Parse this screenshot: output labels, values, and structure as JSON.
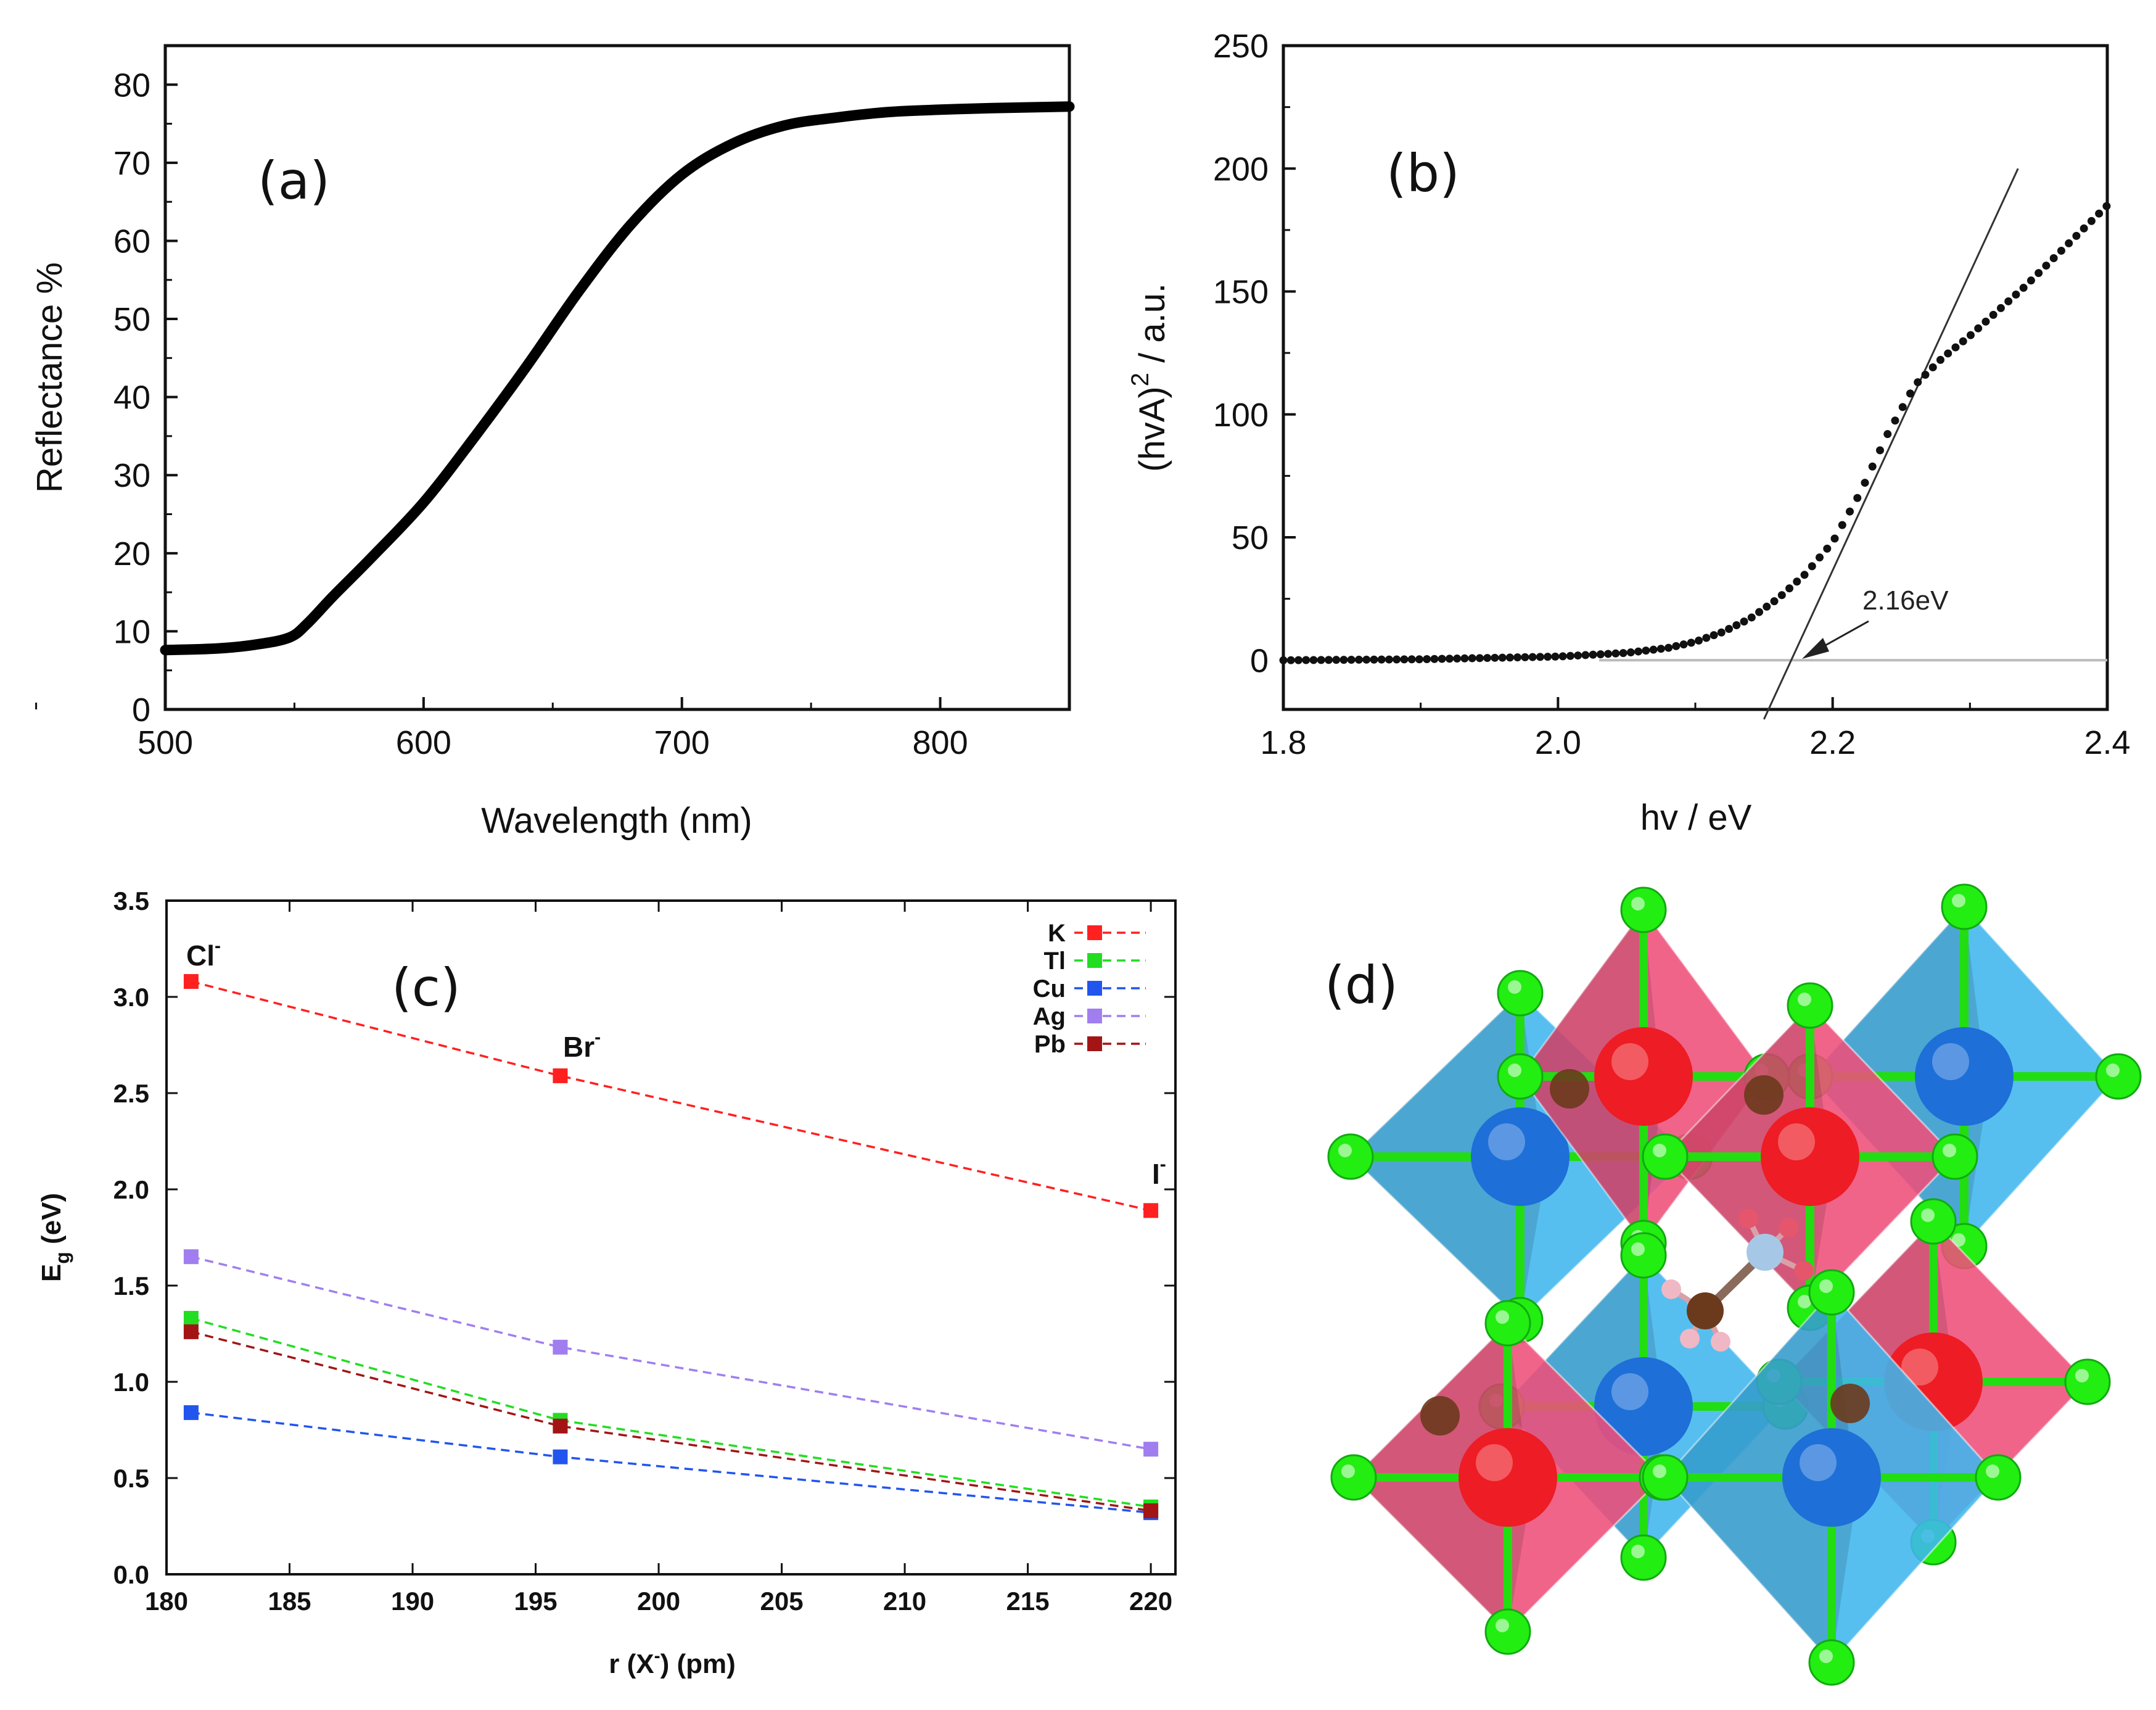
{
  "chart_data": [
    {
      "panel": "(a)",
      "type": "line",
      "xlabel": "Wavelength (nm)",
      "ylabel": "Reflectance %",
      "xlim": [
        500,
        850
      ],
      "ylim": [
        0,
        85
      ],
      "xticks": [
        500,
        600,
        700,
        800
      ],
      "yticks": [
        0,
        10,
        20,
        30,
        40,
        50,
        60,
        70,
        80
      ],
      "series": [
        {
          "name": "Reflectance",
          "x": [
            500,
            520,
            535,
            548,
            555,
            565,
            580,
            600,
            620,
            640,
            660,
            680,
            700,
            720,
            740,
            760,
            780,
            800,
            820,
            850
          ],
          "y": [
            7.6,
            7.8,
            8.3,
            9.2,
            11.0,
            14.5,
            19.5,
            26.5,
            35.0,
            44.0,
            53.5,
            62.0,
            68.5,
            72.5,
            74.8,
            75.8,
            76.5,
            76.8,
            77.0,
            77.2
          ]
        }
      ]
    },
    {
      "panel": "(b)",
      "type": "scatter",
      "xlabel": "hv / eV",
      "ylabel": "(hvA)² / a.u.",
      "ylabel_main": "(hvA)",
      "ylabel_sup": "2",
      "ylabel_tail": " / a.u.",
      "xlim": [
        1.8,
        2.4
      ],
      "ylim": [
        -20,
        250
      ],
      "xticks": [
        "1.8",
        "2.0",
        "2.2",
        "2.4"
      ],
      "yticks": [
        "0",
        "50",
        "100",
        "150",
        "200",
        "250"
      ],
      "annotation": "2.16eV",
      "baseline_y": 0,
      "tangent": {
        "x": [
          2.15,
          2.335
        ],
        "y": [
          -24,
          200
        ]
      },
      "series": [
        {
          "name": "(hvA)^2",
          "x": [
            1.8,
            1.9,
            2.0,
            2.05,
            2.08,
            2.1,
            2.12,
            2.14,
            2.16,
            2.18,
            2.2,
            2.22,
            2.24,
            2.26,
            2.28,
            2.3,
            2.32,
            2.34,
            2.36,
            2.38,
            2.4
          ],
          "y": [
            0,
            0.4,
            1.5,
            3.0,
            5.0,
            7.5,
            11.5,
            17.0,
            25.0,
            35.0,
            48.0,
            68.0,
            92.0,
            112.0,
            123.0,
            132.0,
            142.0,
            152.0,
            163.0,
            174.0,
            185.0
          ]
        }
      ]
    },
    {
      "panel": "(c)",
      "type": "line",
      "xlabel": "r (X⁻) (pm)",
      "xlabel_main": "r (X",
      "xlabel_sup": "-",
      "xlabel_tail": ") (pm)",
      "ylabel": "Eg (eV)",
      "ylabel_main": "E",
      "ylabel_sub": "g",
      "ylabel_tail": " (eV)",
      "xlim": [
        180,
        221
      ],
      "ylim": [
        0,
        3.5
      ],
      "xticks": [
        "180",
        "185",
        "190",
        "195",
        "200",
        "205",
        "210",
        "215",
        "220"
      ],
      "yticks": [
        "0.0",
        "0.5",
        "1.0",
        "1.5",
        "2.0",
        "2.5",
        "3.0",
        "3.5"
      ],
      "annotations": [
        {
          "text": "Cl",
          "sup": "-",
          "x": 181,
          "y": 3.08
        },
        {
          "text": "Br",
          "sup": "-",
          "x": 196,
          "y": 2.59
        },
        {
          "text": "I",
          "sup": "-",
          "x": 220,
          "y": 1.89
        }
      ],
      "x": [
        181,
        196,
        220
      ],
      "series": [
        {
          "name": "K",
          "color": "#ff2020",
          "values": [
            3.08,
            2.59,
            1.89
          ]
        },
        {
          "name": "Tl",
          "color": "#22dd22",
          "values": [
            1.33,
            0.8,
            0.35
          ]
        },
        {
          "name": "Cu",
          "color": "#2255ee",
          "values": [
            0.84,
            0.61,
            0.32
          ]
        },
        {
          "name": "Ag",
          "color": "#a07ef0",
          "values": [
            1.65,
            1.18,
            0.65
          ]
        },
        {
          "name": "Pb",
          "color": "#a31515",
          "values": [
            1.26,
            0.77,
            0.33
          ]
        }
      ]
    }
  ],
  "panel_d": {
    "label": "(d)",
    "colors": {
      "halide": "#22ee11",
      "octahedron_blue": "#3fb6ee",
      "octahedron_red": "#ef4f7a",
      "metal_blue": "#1e6fd8",
      "metal_red": "#ee1c24",
      "cation_brown": "#6b3a1c"
    }
  }
}
